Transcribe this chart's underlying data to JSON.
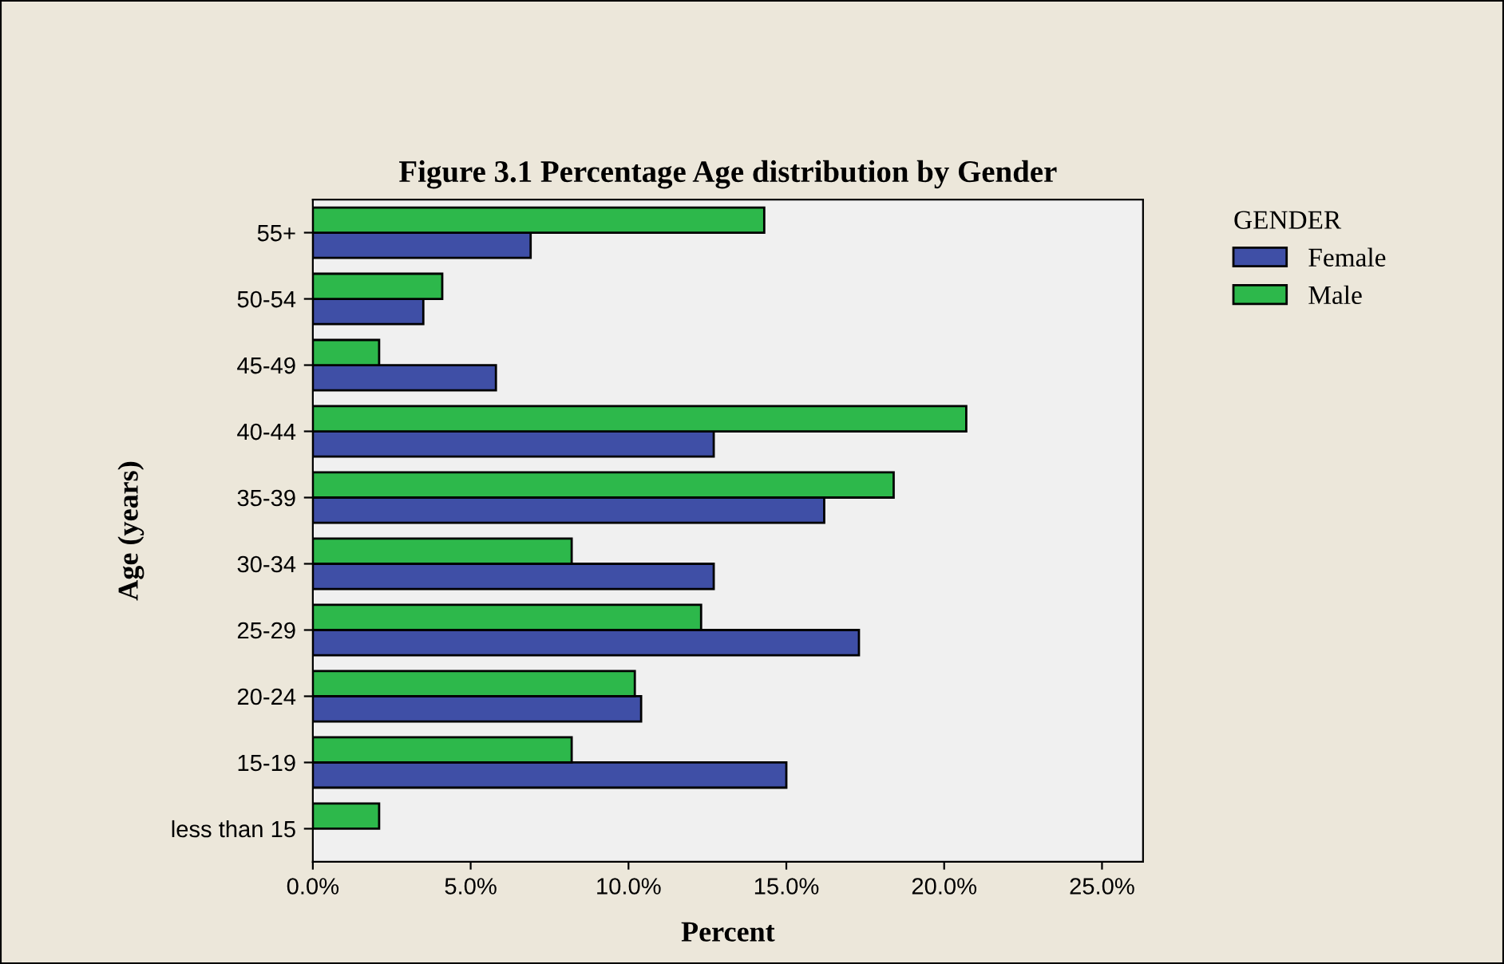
{
  "chart_data": {
    "type": "bar",
    "orientation": "horizontal",
    "title": "Figure 3.1 Percentage Age distribution by Gender",
    "xlabel": "Percent",
    "ylabel": "Age (years)",
    "legend_title": "GENDER",
    "legend": "top right",
    "categories": [
      "55+",
      "50-54",
      "45-49",
      "40-44",
      "35-39",
      "30-34",
      "25-29",
      "20-24",
      "15-19",
      "less than 15"
    ],
    "series": [
      {
        "name": "Female",
        "color": "#3f4fa6",
        "values": [
          6.9,
          3.5,
          5.8,
          12.7,
          16.2,
          12.7,
          17.3,
          10.4,
          15.0,
          null
        ]
      },
      {
        "name": "Male",
        "color": "#2db84b",
        "values": [
          14.3,
          4.1,
          2.1,
          20.7,
          18.4,
          8.2,
          12.3,
          10.2,
          8.2,
          2.1
        ]
      }
    ],
    "xlim": [
      0,
      26.3
    ],
    "xticks": [
      {
        "value": 0,
        "label": "0.0%"
      },
      {
        "value": 5,
        "label": "5.0%"
      },
      {
        "value": 10,
        "label": "10.0%"
      },
      {
        "value": 15,
        "label": "15.0%"
      },
      {
        "value": 20,
        "label": "20.0%"
      },
      {
        "value": 25,
        "label": "25.0%"
      }
    ],
    "grid": false
  }
}
